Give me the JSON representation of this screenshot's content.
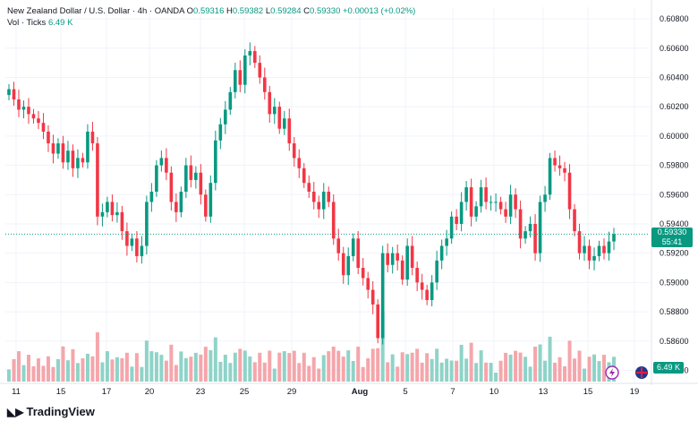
{
  "header": {
    "symbol": "New Zealand Dollar / U.S. Dollar · 4h · OANDA",
    "open_label": "O",
    "open": "0.59316",
    "high_label": "H",
    "high": "0.59382",
    "low_label": "L",
    "low": "0.59284",
    "close_label": "C",
    "close": "0.59330",
    "change": "+0.00013 (+0.02%)",
    "vol_label": "Vol · Ticks",
    "vol_value": "6.49 K"
  },
  "price_tag": {
    "price": "0.59330",
    "countdown": "55:41"
  },
  "volume_tag": "6.49 K",
  "brand": "TradingView",
  "colors": {
    "up": "#089981",
    "down": "#f23645",
    "vol_up": "#8fd3c8",
    "vol_down": "#f5a6ab",
    "grid": "#f0f3fa",
    "axis_text": "#131722"
  },
  "chart_data": {
    "type": "candlestick",
    "interval": "4h",
    "y_axis": {
      "ticks": [
        "0.60800",
        "0.60600",
        "0.60400",
        "0.60200",
        "0.60000",
        "0.59800",
        "0.59600",
        "0.59400",
        "0.59200",
        "0.59000",
        "0.58800",
        "0.58600",
        "0.58400"
      ],
      "ylim": [
        0.5836,
        0.6088
      ]
    },
    "x_axis": {
      "ticks": [
        "11",
        "15",
        "17",
        "20",
        "23",
        "25",
        "29",
        "Aug",
        "5",
        "7",
        "10",
        "13",
        "15",
        "19"
      ]
    },
    "candles_close": [
      0.6032,
      0.6025,
      0.6018,
      0.602,
      0.6015,
      0.6012,
      0.6009,
      0.6003,
      0.5995,
      0.5988,
      0.5995,
      0.5982,
      0.599,
      0.5978,
      0.5985,
      0.5982,
      0.6003,
      0.5995,
      0.5945,
      0.5948,
      0.5955,
      0.5946,
      0.5948,
      0.5935,
      0.5925,
      0.593,
      0.5918,
      0.5925,
      0.5955,
      0.5962,
      0.598,
      0.5985,
      0.5975,
      0.5955,
      0.5948,
      0.5962,
      0.598,
      0.597,
      0.5975,
      0.596,
      0.5945,
      0.5968,
      0.5997,
      0.6008,
      0.6018,
      0.603,
      0.6045,
      0.6035,
      0.6055,
      0.6058,
      0.605,
      0.604,
      0.603,
      0.6015,
      0.602,
      0.6005,
      0.6012,
      0.5995,
      0.5985,
      0.5978,
      0.5968,
      0.5962,
      0.5955,
      0.595,
      0.5962,
      0.5955,
      0.593,
      0.592,
      0.5905,
      0.5918,
      0.593,
      0.591,
      0.5903,
      0.5895,
      0.5885,
      0.5862,
      0.592,
      0.5912,
      0.592,
      0.5915,
      0.5902,
      0.5925,
      0.591,
      0.59,
      0.5895,
      0.5888,
      0.59,
      0.5915,
      0.5925,
      0.593,
      0.5945,
      0.594,
      0.5955,
      0.5965,
      0.5945,
      0.5952,
      0.5965,
      0.5955,
      0.5955,
      0.5955,
      0.595,
      0.5945,
      0.596,
      0.595,
      0.593,
      0.5935,
      0.594,
      0.592,
      0.5955,
      0.596,
      0.5985,
      0.598,
      0.5978,
      0.5975,
      0.595,
      0.5935,
      0.592,
      0.5925,
      0.5915,
      0.5918,
      0.5925,
      0.592,
      0.5928,
      0.5933
    ]
  }
}
